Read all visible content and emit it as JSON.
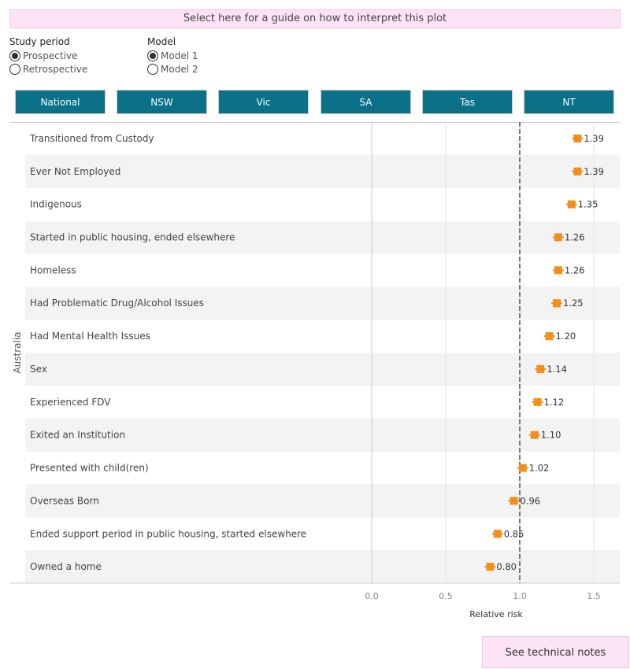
{
  "guide_label": "Select here for a guide on how to interpret this plot",
  "study_period": {
    "title": "Study period",
    "options": [
      "Prospective",
      "Retrospective"
    ],
    "selected": 0
  },
  "model": {
    "title": "Model",
    "options": [
      "Model 1",
      "Model 2"
    ],
    "selected": 0
  },
  "tabs": [
    "National",
    "NSW",
    "Vic",
    "SA",
    "Tas",
    "NT"
  ],
  "technical_notes_label": "See technical notes",
  "colors": {
    "accent": "#0a7188",
    "marker": "#f28e1c",
    "guide_bg": "#fde3f6"
  },
  "chart_data": {
    "type": "scatter",
    "row_group_label": "Australia",
    "xlabel": "Relative risk",
    "xlim": [
      0,
      1.68
    ],
    "xticks": [
      "0.0",
      "0.5",
      "1.0",
      "1.5"
    ],
    "reference_line": 1.0,
    "categories": [
      "Transitioned from Custody",
      "Ever Not Employed",
      "Indigenous",
      "Started in public housing, ended elsewhere",
      "Homeless",
      "Had Problematic Drug/Alcohol Issues",
      "Had Mental Health Issues",
      "Sex",
      "Experienced FDV",
      "Exited an Institution",
      "Presented with child(ren)",
      "Overseas Born",
      "Ended support period in public housing, started elsewhere",
      "Owned a home"
    ],
    "values": [
      1.39,
      1.39,
      1.35,
      1.26,
      1.26,
      1.25,
      1.2,
      1.14,
      1.12,
      1.1,
      1.02,
      0.96,
      0.85,
      0.8
    ],
    "labels": [
      "1.39",
      "1.39",
      "1.35",
      "1.26",
      "1.26",
      "1.25",
      "1.20",
      "1.14",
      "1.12",
      "1.10",
      "1.02",
      "0.96",
      "0.85",
      "0.80"
    ]
  }
}
